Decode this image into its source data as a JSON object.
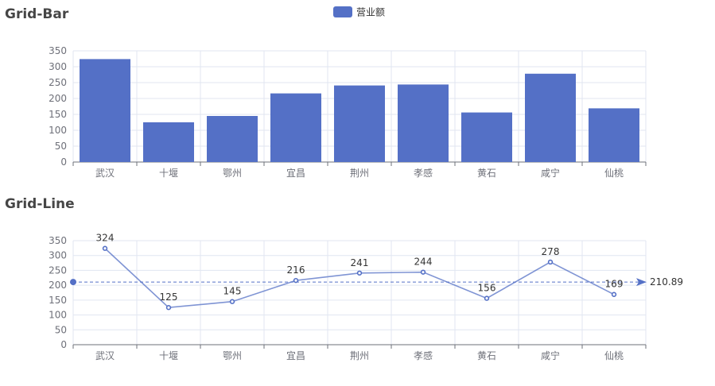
{
  "chart_data": [
    {
      "type": "bar",
      "title": "Grid-Bar",
      "legend": {
        "position": "top-center",
        "entries": [
          "营业额"
        ]
      },
      "categories": [
        "武汉",
        "十堰",
        "鄂州",
        "宜昌",
        "荆州",
        "孝感",
        "黄石",
        "咸宁",
        "仙桃"
      ],
      "series": [
        {
          "name": "营业额",
          "values": [
            324,
            125,
            145,
            216,
            241,
            244,
            156,
            278,
            169
          ],
          "color": "#5470c6"
        }
      ],
      "ylim": [
        0,
        350
      ],
      "yticks": [
        0,
        50,
        100,
        150,
        200,
        250,
        300,
        350
      ],
      "grid": true
    },
    {
      "type": "line",
      "title": "Grid-Line",
      "categories": [
        "武汉",
        "十堰",
        "鄂州",
        "宜昌",
        "荆州",
        "孝感",
        "黄石",
        "咸宁",
        "仙桃"
      ],
      "series": [
        {
          "name": "营业额",
          "values": [
            324,
            125,
            145,
            216,
            241,
            244,
            156,
            278,
            169
          ],
          "color": "#5470c6",
          "show_labels": true
        }
      ],
      "mark_line": {
        "type": "average",
        "value": 210.89,
        "label": "210.89"
      },
      "ylim": [
        0,
        350
      ],
      "yticks": [
        0,
        50,
        100,
        150,
        200,
        250,
        300,
        350
      ],
      "grid": true
    }
  ]
}
